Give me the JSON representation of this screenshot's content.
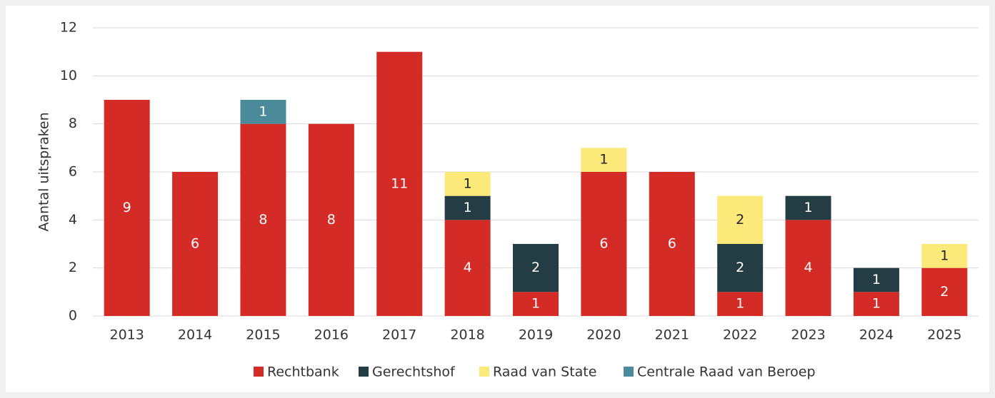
{
  "chart_data": {
    "type": "stacked_bar",
    "y_axis_label": "Aantal uitspraken",
    "categories": [
      "2013",
      "2014",
      "2015",
      "2016",
      "2017",
      "2018",
      "2019",
      "2020",
      "2021",
      "2022",
      "2023",
      "2024",
      "2025"
    ],
    "series": [
      {
        "name": "Rechtbank",
        "color": "#d42b27",
        "label_color": "#ffffff",
        "values": [
          9,
          6,
          8,
          8,
          11,
          4,
          1,
          6,
          6,
          1,
          4,
          1,
          2
        ]
      },
      {
        "name": "Gerechtshof",
        "color": "#243d45",
        "label_color": "#ffffff",
        "values": [
          null,
          null,
          null,
          null,
          null,
          1,
          2,
          null,
          null,
          2,
          1,
          1,
          null
        ]
      },
      {
        "name": "Raad van State",
        "color": "#fbe97a",
        "label_color": "#222222",
        "values": [
          null,
          null,
          null,
          null,
          null,
          1,
          null,
          1,
          null,
          2,
          null,
          null,
          1
        ]
      },
      {
        "name": "Centrale Raad van Beroep",
        "color": "#4a8a99",
        "label_color": "#ffffff",
        "values": [
          null,
          null,
          1,
          null,
          null,
          null,
          null,
          null,
          null,
          null,
          null,
          null,
          null
        ]
      }
    ],
    "ylim": [
      0,
      12
    ],
    "yticks": [
      0,
      2,
      4,
      6,
      8,
      10,
      12
    ],
    "grid": true,
    "legend": "bottom"
  }
}
